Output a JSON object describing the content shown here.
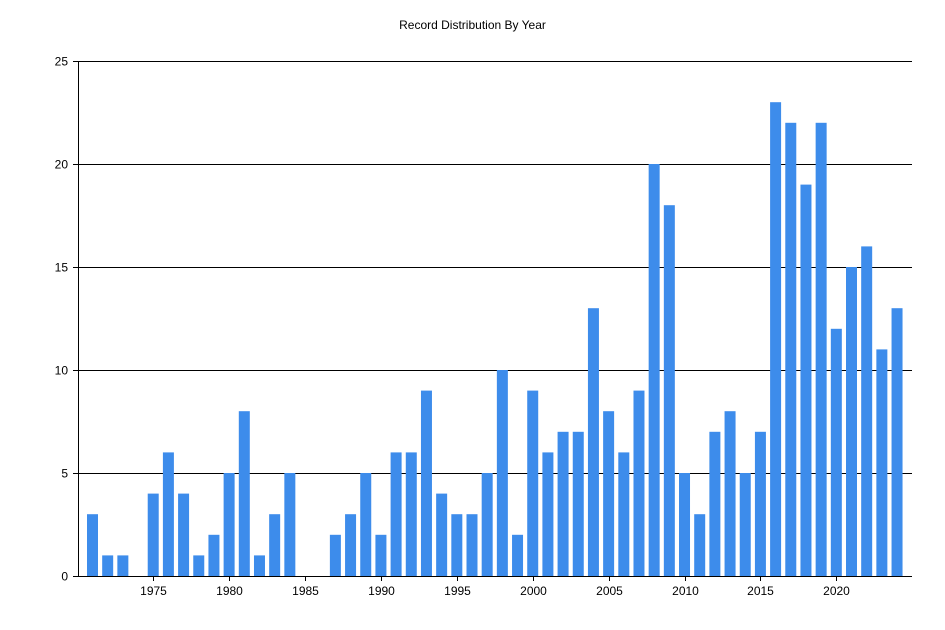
{
  "chart_data": {
    "type": "bar",
    "title": "Record Distribution By Year",
    "xlabel": "",
    "ylabel": "",
    "years": [
      1971,
      1972,
      1973,
      1974,
      1975,
      1976,
      1977,
      1978,
      1979,
      1980,
      1981,
      1982,
      1983,
      1984,
      1985,
      1986,
      1987,
      1988,
      1989,
      1990,
      1991,
      1992,
      1993,
      1994,
      1995,
      1996,
      1997,
      1998,
      1999,
      2000,
      2001,
      2002,
      2003,
      2004,
      2005,
      2006,
      2007,
      2008,
      2009,
      2010,
      2011,
      2012,
      2013,
      2014,
      2015,
      2016,
      2017,
      2018,
      2019,
      2020,
      2021,
      2022,
      2023,
      2024
    ],
    "values": [
      3,
      1,
      1,
      0,
      4,
      6,
      4,
      1,
      2,
      5,
      8,
      1,
      3,
      5,
      0,
      0,
      2,
      3,
      5,
      2,
      6,
      6,
      9,
      4,
      3,
      3,
      5,
      10,
      2,
      9,
      6,
      7,
      7,
      13,
      8,
      6,
      9,
      20,
      18,
      5,
      3,
      7,
      8,
      5,
      7,
      23,
      22,
      19,
      22,
      12,
      15,
      16,
      11,
      13
    ],
    "x_ticks": [
      "1975",
      "1980",
      "1985",
      "1990",
      "1995",
      "2000",
      "2005",
      "2010",
      "2015",
      "2020"
    ],
    "y_ticks": [
      "0",
      "5",
      "10",
      "15",
      "20",
      "25"
    ],
    "ylim": [
      0,
      25
    ],
    "grid": "horizontal",
    "bar_color": "#3d8ceb"
  }
}
